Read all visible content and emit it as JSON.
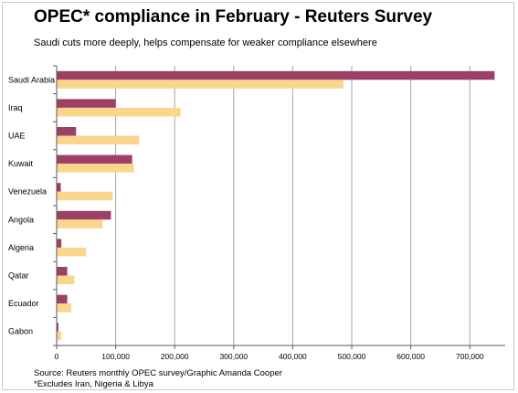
{
  "chart_data": {
    "type": "bar",
    "orientation": "horizontal",
    "title": "OPEC* compliance in February - Reuters Survey",
    "subtitle": "Saudi cuts more deeply, helps compensate for weaker compliance elsewhere",
    "categories": [
      "Saudi Arabia",
      "Iraq",
      "UAE",
      "Kuwait",
      "Venezuela",
      "Angola",
      "Algeria",
      "Qatar",
      "Ecuador",
      "Gabon"
    ],
    "series": [
      {
        "values": [
          742000,
          100000,
          33000,
          128000,
          7000,
          92000,
          8000,
          18000,
          18000,
          3000
        ]
      },
      {
        "values": [
          486000,
          210000,
          140000,
          131000,
          95000,
          78000,
          50000,
          30000,
          25000,
          8000
        ]
      }
    ],
    "xlim": [
      0,
      760000
    ],
    "xticks": [
      0,
      100000,
      200000,
      300000,
      400000,
      500000,
      600000,
      700000
    ],
    "xtick_labels": [
      "0",
      "100,000",
      "200,000",
      "300,000",
      "400,000",
      "500,000",
      "600,000",
      "700,000"
    ],
    "grid": true,
    "colors": [
      "#9b4168",
      "#fad58c"
    ]
  },
  "footer": {
    "source": "Source: Reuters monthly OPEC survey/Graphic Amanda Cooper",
    "note": "*Excludes Iran, Nigeria & Libya"
  }
}
